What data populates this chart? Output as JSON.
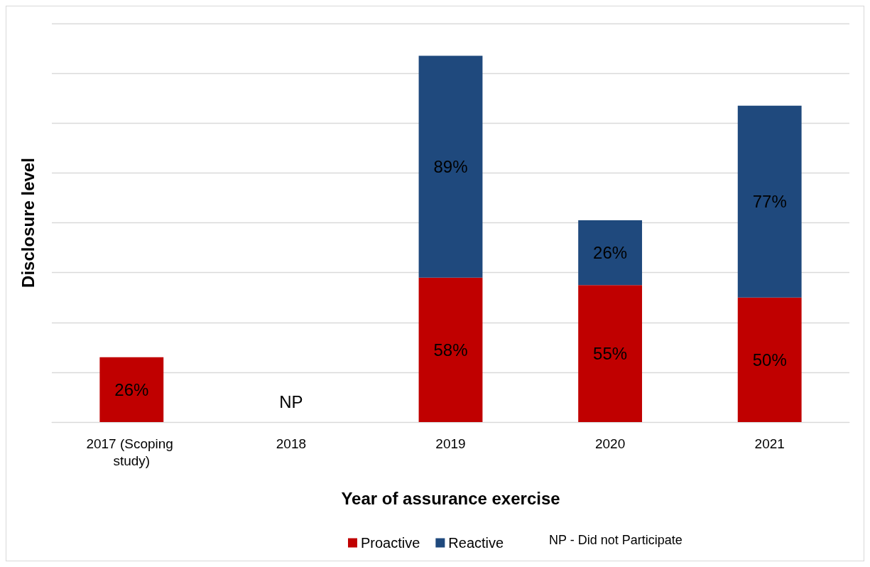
{
  "chart_data": {
    "type": "bar",
    "stacked": true,
    "xlabel": "Year of assurance exercise",
    "ylabel": "Disclosure level",
    "categories": [
      "2017 (Scoping study)",
      "2018",
      "2019",
      "2020",
      "2021"
    ],
    "series": [
      {
        "name": "Proactive",
        "color": "#c00000",
        "values": [
          26,
          null,
          58,
          55,
          50
        ],
        "value_labels": [
          "26%",
          null,
          "58%",
          "55%",
          "50%"
        ]
      },
      {
        "name": "Reactive",
        "color": "#1f497d",
        "values": [
          null,
          null,
          89,
          26,
          77
        ],
        "value_labels": [
          null,
          null,
          "89%",
          "26%",
          "77%"
        ]
      }
    ],
    "ylim": [
      0,
      160
    ],
    "yticks": [
      {
        "value": 0,
        "label": null
      },
      {
        "value": 20,
        "label": null
      },
      {
        "value": 40,
        "label": null
      },
      {
        "value": 60,
        "label": null
      },
      {
        "value": 80,
        "label": null
      },
      {
        "value": 100,
        "label": null
      },
      {
        "value": 120,
        "label": null
      },
      {
        "value": 140,
        "label": null
      },
      {
        "value": 160,
        "label": null
      }
    ],
    "tick_labels": "x",
    "grid": "y",
    "legend": "bottom",
    "annotations": [
      "NP",
      "NP - Did not Participate"
    ]
  }
}
